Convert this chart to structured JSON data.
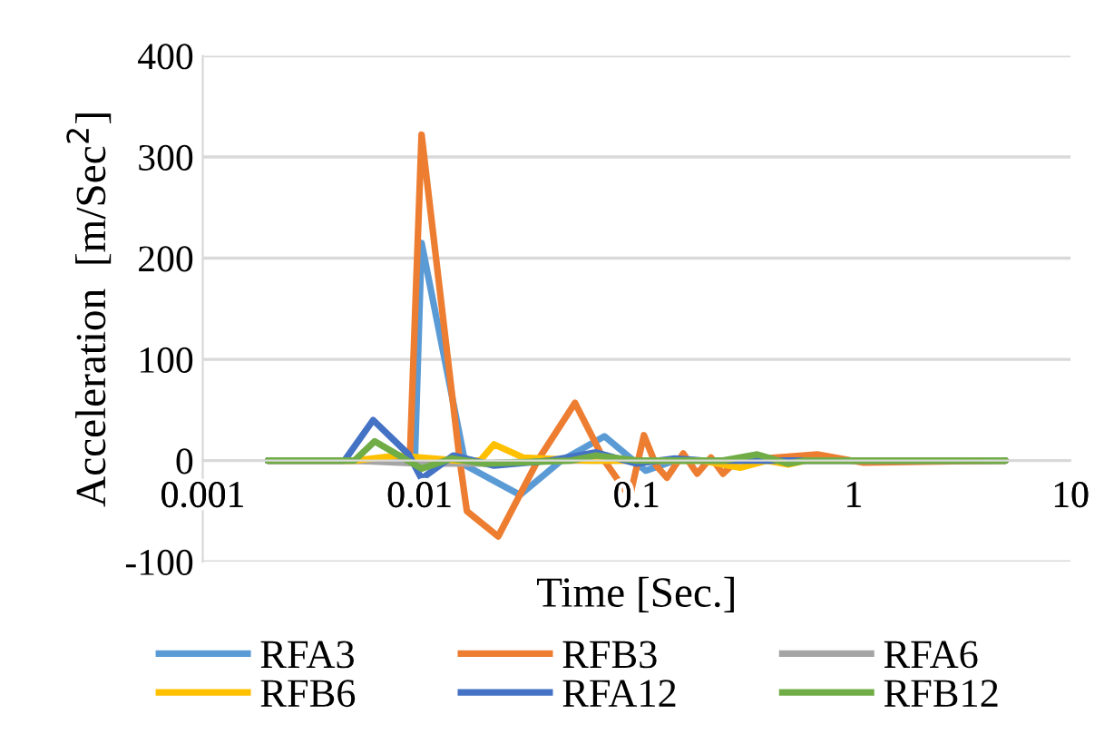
{
  "chart_data": {
    "type": "line",
    "xlabel": "Time [Sec.]",
    "ylabel": "Acceleration  [m/Sec$^{2}$]",
    "log": "x",
    "xlim": [
      0.001,
      10
    ],
    "xticks": [
      0.001,
      0.01,
      0.1,
      1,
      10
    ],
    "ylim": [
      -100,
      400
    ],
    "yticks": [
      -100,
      0,
      100,
      200,
      300,
      400
    ],
    "grid": "y",
    "legend": "bottom",
    "line_style": "solid",
    "marker": "none",
    "series": [
      {
        "name": "RFA3",
        "color": "#5b9bd5",
        "x": [
          0.002,
          0.005,
          0.009,
          0.0095,
          0.0102,
          0.0163,
          0.029,
          0.045,
          0.071,
          0.11,
          0.15,
          0.3,
          1,
          5
        ],
        "values": [
          0,
          0,
          0,
          0,
          215,
          -5,
          -34,
          0,
          24,
          -10,
          0,
          0,
          0,
          0
        ]
      },
      {
        "name": "RFB3",
        "color": "#ed7d31",
        "x": [
          0.002,
          0.005,
          0.009,
          0.0102,
          0.0153,
          0.0165,
          0.023,
          0.035,
          0.052,
          0.071,
          0.093,
          0.108,
          0.123,
          0.138,
          0.164,
          0.19,
          0.22,
          0.25,
          0.29,
          0.68,
          1.1,
          5
        ],
        "values": [
          0,
          0,
          0,
          322,
          0,
          -50,
          -75,
          0,
          57,
          0,
          -36,
          25,
          -5,
          -17,
          7,
          -13,
          3,
          -13,
          0,
          6,
          -2,
          0
        ]
      },
      {
        "name": "RFA6",
        "color": "#a5a5a5",
        "x": [
          0.002,
          0.005,
          0.01,
          0.02,
          0.04,
          5
        ],
        "values": [
          0,
          0,
          -3,
          -3,
          0,
          0
        ]
      },
      {
        "name": "RFB6",
        "color": "#ffc000",
        "x": [
          0.002,
          0.005,
          0.008,
          0.0102,
          0.015,
          0.019,
          0.022,
          0.03,
          0.06,
          0.2,
          0.3,
          0.4,
          0.5,
          0.6,
          5
        ],
        "values": [
          0,
          0,
          5,
          3,
          0,
          0,
          16,
          3,
          0,
          0,
          -7,
          0,
          -4,
          0,
          0
        ]
      },
      {
        "name": "RFA12",
        "color": "#4472c4",
        "x": [
          0.002,
          0.0045,
          0.0061,
          0.0089,
          0.0102,
          0.0143,
          0.022,
          0.04,
          0.065,
          0.1,
          0.15,
          0.2,
          5
        ],
        "values": [
          0,
          0,
          40,
          6,
          -18,
          5,
          -5,
          0,
          8,
          -3,
          2,
          0,
          0
        ]
      },
      {
        "name": "RFB12",
        "color": "#70ad47",
        "x": [
          0.002,
          0.005,
          0.0062,
          0.0102,
          0.014,
          0.02,
          0.05,
          0.065,
          0.1,
          0.25,
          0.36,
          0.5,
          0.6,
          5
        ],
        "values": [
          0,
          0,
          19,
          -8,
          2,
          -3,
          0,
          5,
          0,
          0,
          6,
          -3,
          0,
          0
        ]
      }
    ]
  }
}
